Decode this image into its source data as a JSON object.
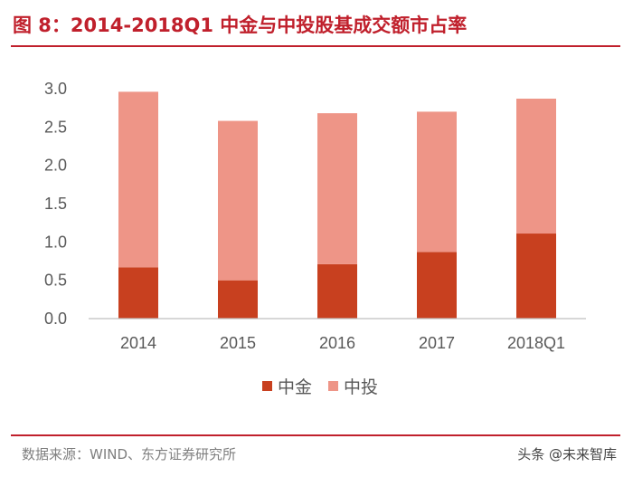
{
  "header": {
    "title": "图 8：2014-2018Q1 中金与中投股基成交额市占率"
  },
  "chart_data": {
    "type": "bar",
    "stacked": true,
    "title": "图 8：2014-2018Q1 中金与中投股基成交额市占率",
    "categories": [
      "2014",
      "2015",
      "2016",
      "2017",
      "2018Q1"
    ],
    "series": [
      {
        "name": "中金",
        "values": [
          0.67,
          0.5,
          0.71,
          0.87,
          1.11
        ],
        "color": "#c8401f"
      },
      {
        "name": "中投",
        "values": [
          2.29,
          2.08,
          1.97,
          1.83,
          1.76
        ],
        "color": "#ee9587"
      }
    ],
    "xlabel": "",
    "ylabel": "",
    "ylim": [
      0,
      3.0
    ],
    "yticks": [
      "0.0",
      "0.5",
      "1.0",
      "1.5",
      "2.0",
      "2.5",
      "3.0"
    ],
    "grid": false,
    "legend_position": "bottom"
  },
  "footer": {
    "source": "数据来源：WIND、东方证券研究所",
    "watermark": "头条 @未来智库",
    "watermark_icon": "camera-icon"
  }
}
